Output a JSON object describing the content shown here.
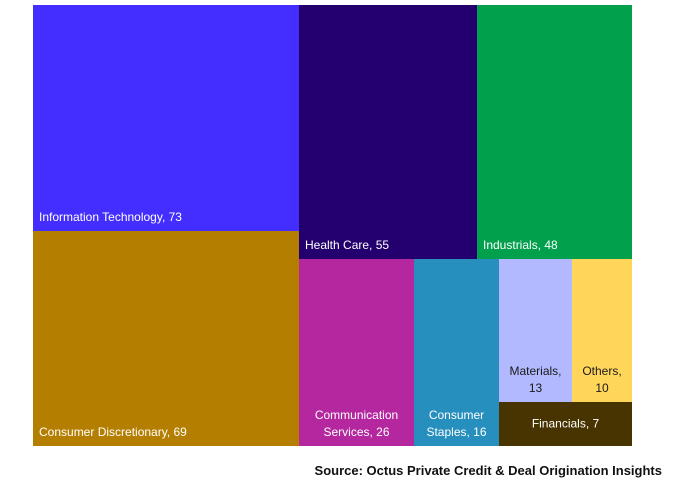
{
  "chart_data": {
    "type": "treemap",
    "title": "",
    "items": [
      {
        "id": "it",
        "label": "Information Technology, 73",
        "category": "Information Technology",
        "value": 73,
        "color": "#432EFF",
        "text_color": "#FFFFFF"
      },
      {
        "id": "cd",
        "label": "Consumer Discretionary, 69",
        "category": "Consumer Discretionary",
        "value": 69,
        "color": "#B47E00",
        "text_color": "#FFFFFF"
      },
      {
        "id": "hc",
        "label": "Health Care, 55",
        "category": "Health Care",
        "value": 55,
        "color": "#23006E",
        "text_color": "#FFFFFF"
      },
      {
        "id": "ind",
        "label": "Industrials, 48",
        "category": "Industrials",
        "value": 48,
        "color": "#00A04C",
        "text_color": "#FFFFFF"
      },
      {
        "id": "cs",
        "label": "Communication Services, 26",
        "lines": [
          "Communication",
          "Services, 26"
        ],
        "category": "Communication Services",
        "value": 26,
        "color": "#B4279F",
        "text_color": "#FFFFFF"
      },
      {
        "id": "cst",
        "label": "Consumer Staples, 16",
        "lines": [
          "Consumer",
          "Staples, 16"
        ],
        "category": "Consumer Staples",
        "value": 16,
        "color": "#268FBD",
        "text_color": "#FFFFFF"
      },
      {
        "id": "mat",
        "label": "Materials, 13",
        "lines": [
          "Materials,",
          "13"
        ],
        "category": "Materials",
        "value": 13,
        "color": "#B3B9FF",
        "text_color": "#1A1A1A"
      },
      {
        "id": "oth",
        "label": "Others, 10",
        "lines": [
          "Others,",
          "10"
        ],
        "category": "Others",
        "value": 10,
        "color": "#FFD65A",
        "text_color": "#1A1A1A"
      },
      {
        "id": "fin",
        "label": "Financials, 7",
        "category": "Financials",
        "value": 7,
        "color": "#473400",
        "text_color": "#FFFFFF"
      }
    ]
  },
  "source": "Source: Octus Private Credit & Deal Origination Insights"
}
